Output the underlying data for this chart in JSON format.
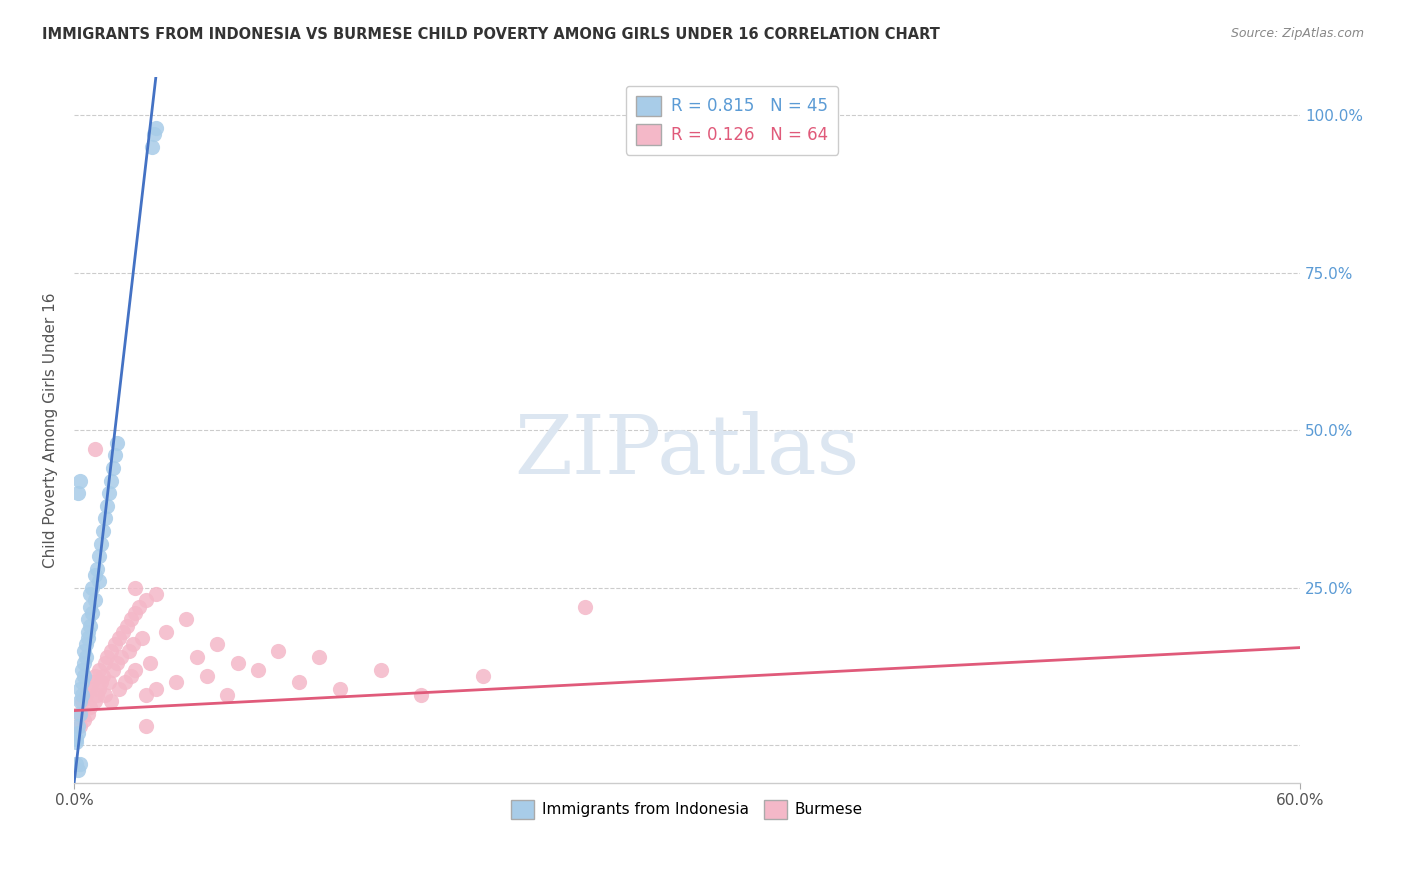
{
  "title": "IMMIGRANTS FROM INDONESIA VS BURMESE CHILD POVERTY AMONG GIRLS UNDER 16 CORRELATION CHART",
  "source": "Source: ZipAtlas.com",
  "ylabel": "Child Poverty Among Girls Under 16",
  "xlim": [
    0.0,
    0.6
  ],
  "ylim": [
    -0.06,
    1.06
  ],
  "right_yticks": [
    0.0,
    0.25,
    0.5,
    0.75,
    1.0
  ],
  "right_yticklabels": [
    "",
    "25.0%",
    "50.0%",
    "75.0%",
    "100.0%"
  ],
  "xtick_positions": [
    0.0,
    0.6
  ],
  "xtick_labels": [
    "0.0%",
    "60.0%"
  ],
  "legend_r1": "R = 0.815",
  "legend_n1": "N = 45",
  "legend_r2": "R = 0.126",
  "legend_n2": "N = 64",
  "series1_color": "#a8cce8",
  "series2_color": "#f4b8c8",
  "trendline1_color": "#4472c4",
  "trendline2_color": "#e05a7a",
  "legend_color1": "#5b9bd5",
  "legend_color2": "#e05a7a",
  "watermark_text": "ZIPatlas",
  "watermark_color": "#dce6f1",
  "background_color": "#ffffff",
  "grid_color": "#cccccc",
  "title_color": "#333333",
  "right_tick_color": "#5b9bd5",
  "ylabel_color": "#555555",
  "xtick_color": "#555555",
  "trendline1_x": [
    0.0,
    0.04
  ],
  "trendline1_y": [
    -0.06,
    1.06
  ],
  "trendline2_x": [
    0.0,
    0.6
  ],
  "trendline2_y": [
    0.055,
    0.155
  ],
  "series1_points": [
    [
      0.001,
      0.005
    ],
    [
      0.001,
      0.01
    ],
    [
      0.002,
      0.02
    ],
    [
      0.002,
      0.03
    ],
    [
      0.003,
      0.05
    ],
    [
      0.003,
      0.07
    ],
    [
      0.003,
      0.09
    ],
    [
      0.004,
      0.1
    ],
    [
      0.004,
      0.12
    ],
    [
      0.004,
      0.08
    ],
    [
      0.005,
      0.13
    ],
    [
      0.005,
      0.11
    ],
    [
      0.005,
      0.15
    ],
    [
      0.006,
      0.16
    ],
    [
      0.006,
      0.14
    ],
    [
      0.007,
      0.18
    ],
    [
      0.007,
      0.2
    ],
    [
      0.007,
      0.17
    ],
    [
      0.008,
      0.22
    ],
    [
      0.008,
      0.19
    ],
    [
      0.008,
      0.24
    ],
    [
      0.009,
      0.25
    ],
    [
      0.009,
      0.21
    ],
    [
      0.01,
      0.27
    ],
    [
      0.01,
      0.23
    ],
    [
      0.011,
      0.28
    ],
    [
      0.012,
      0.3
    ],
    [
      0.012,
      0.26
    ],
    [
      0.013,
      0.32
    ],
    [
      0.014,
      0.34
    ],
    [
      0.015,
      0.36
    ],
    [
      0.016,
      0.38
    ],
    [
      0.017,
      0.4
    ],
    [
      0.018,
      0.42
    ],
    [
      0.019,
      0.44
    ],
    [
      0.02,
      0.46
    ],
    [
      0.021,
      0.48
    ],
    [
      0.002,
      0.4
    ],
    [
      0.003,
      0.42
    ],
    [
      0.001,
      -0.03
    ],
    [
      0.002,
      -0.04
    ],
    [
      0.003,
      -0.03
    ],
    [
      0.038,
      0.95
    ],
    [
      0.039,
      0.97
    ],
    [
      0.04,
      0.98
    ]
  ],
  "series2_points": [
    [
      0.002,
      0.05
    ],
    [
      0.003,
      0.03
    ],
    [
      0.004,
      0.07
    ],
    [
      0.005,
      0.04
    ],
    [
      0.006,
      0.08
    ],
    [
      0.007,
      0.05
    ],
    [
      0.008,
      0.09
    ],
    [
      0.008,
      0.06
    ],
    [
      0.009,
      0.1
    ],
    [
      0.01,
      0.07
    ],
    [
      0.01,
      0.11
    ],
    [
      0.011,
      0.08
    ],
    [
      0.012,
      0.12
    ],
    [
      0.012,
      0.09
    ],
    [
      0.013,
      0.1
    ],
    [
      0.014,
      0.11
    ],
    [
      0.015,
      0.13
    ],
    [
      0.015,
      0.08
    ],
    [
      0.016,
      0.14
    ],
    [
      0.017,
      0.1
    ],
    [
      0.018,
      0.15
    ],
    [
      0.018,
      0.07
    ],
    [
      0.019,
      0.12
    ],
    [
      0.02,
      0.16
    ],
    [
      0.021,
      0.13
    ],
    [
      0.022,
      0.17
    ],
    [
      0.022,
      0.09
    ],
    [
      0.023,
      0.14
    ],
    [
      0.024,
      0.18
    ],
    [
      0.025,
      0.1
    ],
    [
      0.026,
      0.19
    ],
    [
      0.027,
      0.15
    ],
    [
      0.028,
      0.2
    ],
    [
      0.028,
      0.11
    ],
    [
      0.029,
      0.16
    ],
    [
      0.03,
      0.21
    ],
    [
      0.03,
      0.12
    ],
    [
      0.032,
      0.22
    ],
    [
      0.033,
      0.17
    ],
    [
      0.035,
      0.23
    ],
    [
      0.035,
      0.08
    ],
    [
      0.037,
      0.13
    ],
    [
      0.04,
      0.24
    ],
    [
      0.04,
      0.09
    ],
    [
      0.045,
      0.18
    ],
    [
      0.05,
      0.1
    ],
    [
      0.055,
      0.2
    ],
    [
      0.06,
      0.14
    ],
    [
      0.065,
      0.11
    ],
    [
      0.07,
      0.16
    ],
    [
      0.075,
      0.08
    ],
    [
      0.08,
      0.13
    ],
    [
      0.09,
      0.12
    ],
    [
      0.1,
      0.15
    ],
    [
      0.11,
      0.1
    ],
    [
      0.12,
      0.14
    ],
    [
      0.13,
      0.09
    ],
    [
      0.15,
      0.12
    ],
    [
      0.17,
      0.08
    ],
    [
      0.2,
      0.11
    ],
    [
      0.01,
      0.47
    ],
    [
      0.03,
      0.25
    ],
    [
      0.035,
      0.03
    ],
    [
      0.25,
      0.22
    ]
  ]
}
